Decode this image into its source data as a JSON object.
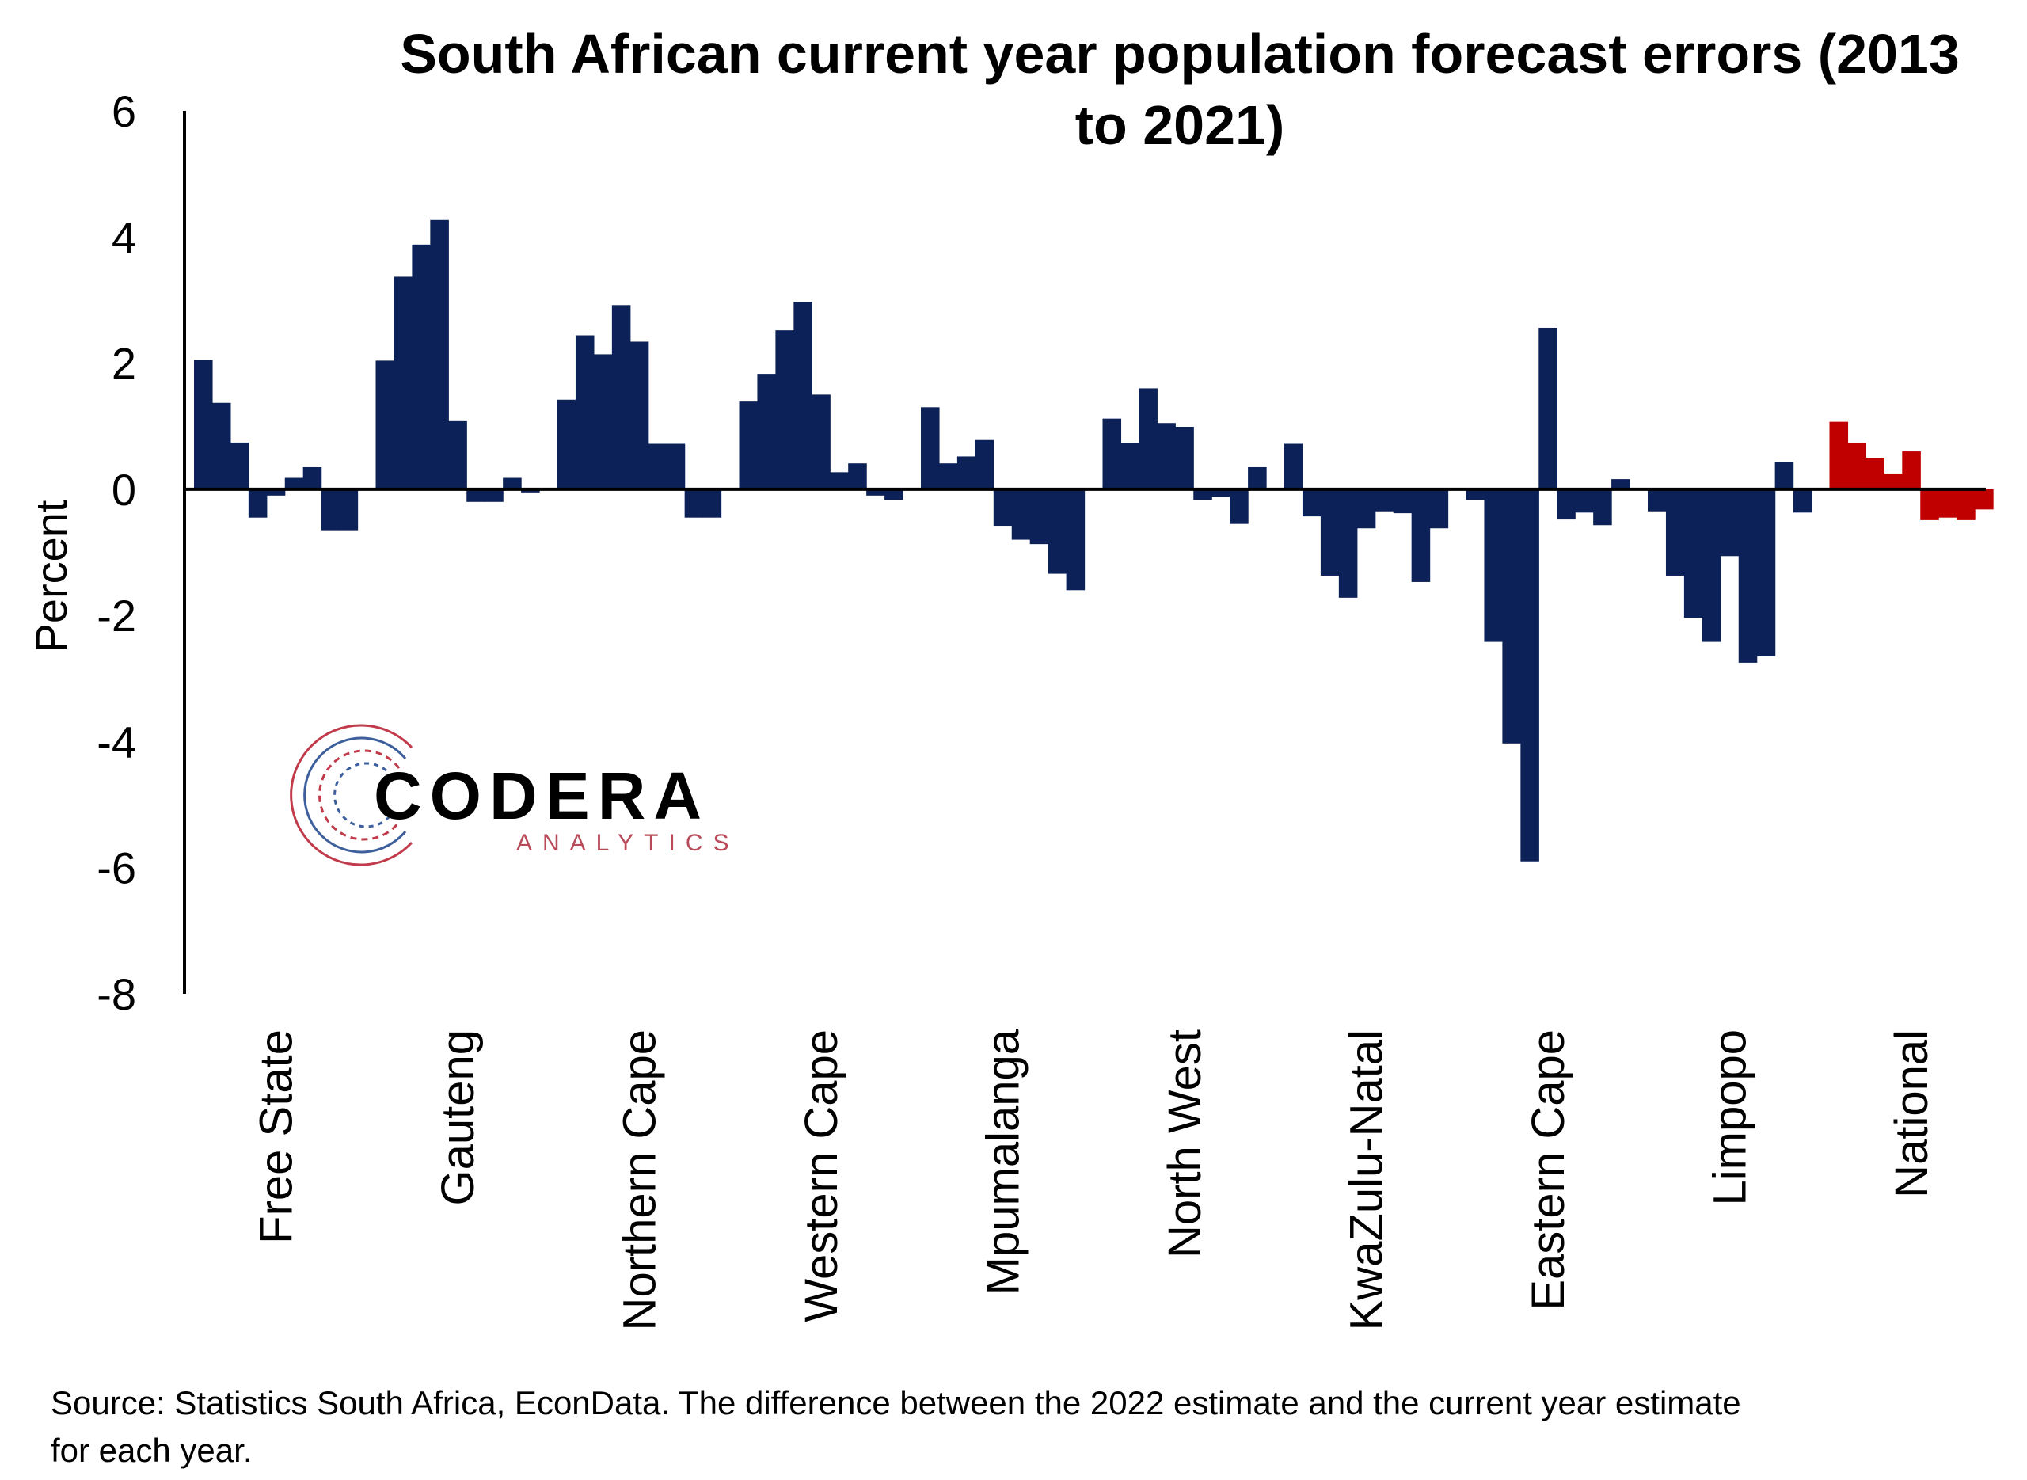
{
  "chart_data": {
    "type": "bar",
    "title": "South African current year population forecast errors (2013 to 2021)",
    "ylabel": "Percent",
    "xlabel": "",
    "ylim": [
      -8,
      6
    ],
    "yticks": [
      6,
      4,
      2,
      0,
      -2,
      -4,
      -6,
      -8
    ],
    "grid": false,
    "legend": "none",
    "bars_per_group": 9,
    "colors": {
      "region": "#0b2157",
      "national": "#c00000"
    },
    "groups": [
      {
        "category": "Free State",
        "values": [
          2.05,
          1.37,
          0.74,
          -0.45,
          -0.1,
          0.18,
          0.35,
          -0.65,
          -0.65
        ]
      },
      {
        "category": "Gauteng",
        "values": [
          2.04,
          3.37,
          3.88,
          4.27,
          1.08,
          -0.2,
          -0.2,
          0.18,
          -0.05
        ]
      },
      {
        "category": "Northern Cape",
        "values": [
          1.42,
          2.44,
          2.14,
          2.92,
          2.34,
          0.72,
          0.72,
          -0.45,
          -0.45
        ]
      },
      {
        "category": "Western Cape",
        "values": [
          1.39,
          1.83,
          2.52,
          2.97,
          1.5,
          0.27,
          0.41,
          -0.1,
          -0.17
        ]
      },
      {
        "category": "Mpumalanga",
        "values": [
          1.3,
          0.41,
          0.52,
          0.78,
          -0.58,
          -0.8,
          -0.87,
          -1.34,
          -1.6
        ]
      },
      {
        "category": "North West",
        "values": [
          1.12,
          0.73,
          1.6,
          1.05,
          0.99,
          -0.17,
          -0.12,
          -0.55,
          0.35
        ]
      },
      {
        "category": "KwaZulu-Natal",
        "values": [
          0.72,
          -0.43,
          -1.37,
          -1.72,
          -0.62,
          -0.35,
          -0.38,
          -1.47,
          -0.62
        ]
      },
      {
        "category": "Eastern Cape",
        "values": [
          -0.17,
          -2.42,
          -4.03,
          -5.9,
          2.56,
          -0.48,
          -0.37,
          -0.57,
          0.16
        ]
      },
      {
        "category": "Limpopo",
        "values": [
          -0.35,
          -1.37,
          -2.04,
          -2.42,
          -1.06,
          -2.75,
          -2.65,
          0.43,
          -0.37
        ]
      },
      {
        "category": "National",
        "values": [
          1.07,
          0.73,
          0.5,
          0.25,
          0.6,
          -0.49,
          -0.45,
          -0.49,
          -0.32
        ]
      }
    ]
  },
  "logo": {
    "main": "CODERA",
    "sub": "ANALYTICS"
  },
  "source": {
    "line1": "Source: Statistics South Africa, EconData. The difference between the 2022 estimate and the current year estimate",
    "line2": "for each year."
  }
}
